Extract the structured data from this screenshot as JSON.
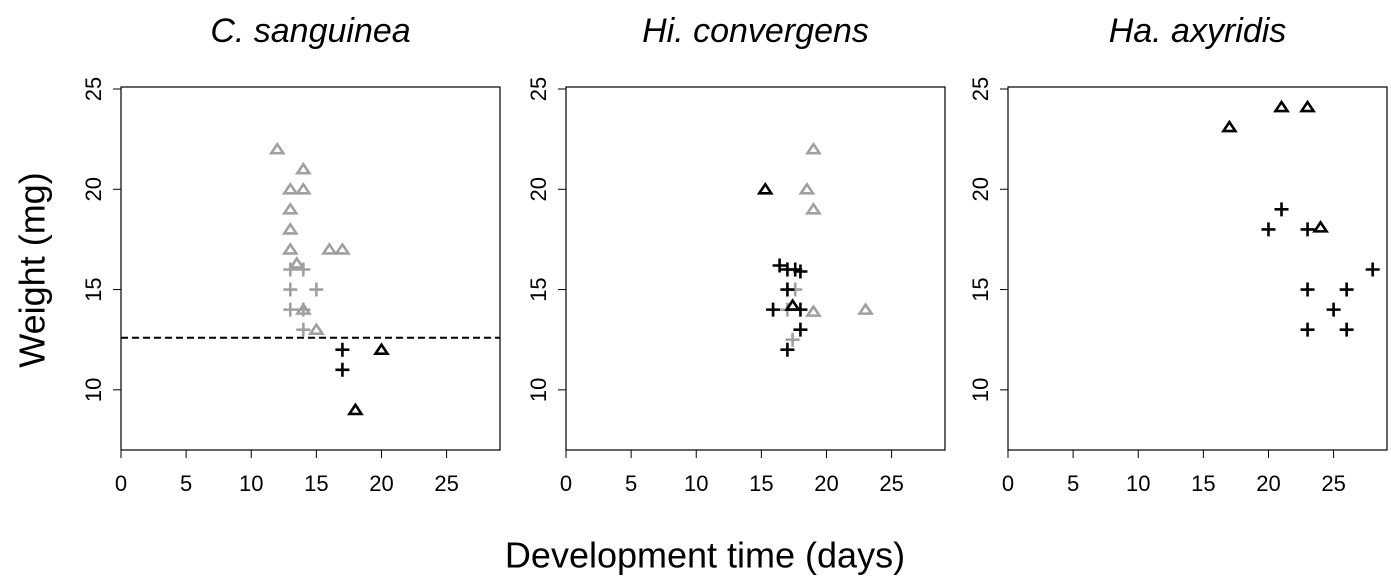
{
  "ylabel": "Weight (mg)",
  "xlabel": "Development time (days)",
  "chart_data": [
    {
      "type": "scatter",
      "title": "C. sanguinea",
      "xlim": [
        0,
        29.1
      ],
      "ylim": [
        7,
        25.1
      ],
      "xticks": [
        0,
        5,
        10,
        15,
        20,
        25
      ],
      "yticks": [
        10,
        15,
        20,
        25
      ],
      "hline": 12.6,
      "series": [
        {
          "color": "#a0a0a0",
          "marker": "triangle",
          "x": [
            12,
            14,
            13,
            14,
            13,
            13,
            13,
            13.5,
            16,
            17,
            14,
            15
          ],
          "values": [
            22,
            21,
            20,
            20,
            19,
            18,
            17,
            16.3,
            17,
            17,
            14,
            13
          ]
        },
        {
          "color": "#a0a0a0",
          "marker": "plus",
          "x": [
            13,
            14,
            13,
            15,
            13,
            14,
            14
          ],
          "values": [
            16,
            16,
            15,
            15,
            14,
            14,
            13
          ]
        },
        {
          "color": "#000000",
          "marker": "triangle",
          "x": [
            20,
            18
          ],
          "values": [
            12,
            9
          ]
        },
        {
          "color": "#000000",
          "marker": "plus",
          "x": [
            17,
            17
          ],
          "values": [
            12,
            11
          ]
        }
      ]
    },
    {
      "type": "scatter",
      "title": "Hi. convergens",
      "xlim": [
        0,
        29.1
      ],
      "ylim": [
        7,
        25.1
      ],
      "xticks": [
        0,
        5,
        10,
        15,
        20,
        25
      ],
      "yticks": [
        10,
        15,
        20,
        25
      ],
      "series": [
        {
          "color": "#a0a0a0",
          "marker": "triangle",
          "x": [
            19,
            18.5,
            19,
            23,
            19
          ],
          "values": [
            22,
            20,
            19,
            14,
            13.9
          ]
        },
        {
          "color": "#a0a0a0",
          "marker": "plus",
          "x": [
            17.6,
            17.4,
            17
          ],
          "values": [
            15,
            12.5,
            14
          ]
        },
        {
          "color": "#000000",
          "marker": "triangle",
          "x": [
            15.3,
            17.4
          ],
          "values": [
            20,
            14.2
          ]
        },
        {
          "color": "#000000",
          "marker": "plus",
          "x": [
            16.4,
            17,
            17.6,
            18,
            17,
            15.9,
            18,
            18,
            17
          ],
          "values": [
            16.2,
            16,
            16,
            15.9,
            15,
            14,
            14,
            13,
            12
          ]
        }
      ]
    },
    {
      "type": "scatter",
      "title": "Ha. axyridis",
      "xlim": [
        0,
        29.1
      ],
      "ylim": [
        7,
        25.1
      ],
      "xticks": [
        0,
        5,
        10,
        15,
        20,
        25
      ],
      "yticks": [
        10,
        15,
        20,
        25
      ],
      "series": [
        {
          "color": "#000000",
          "marker": "triangle",
          "x": [
            17,
            21,
            23,
            24
          ],
          "values": [
            23.1,
            24.1,
            24.1,
            18.1
          ]
        },
        {
          "color": "#000000",
          "marker": "plus",
          "x": [
            21,
            20,
            23,
            28,
            23,
            26,
            25,
            23,
            26
          ],
          "values": [
            19,
            18,
            18,
            16,
            15,
            15,
            14,
            13,
            13
          ]
        }
      ]
    }
  ]
}
